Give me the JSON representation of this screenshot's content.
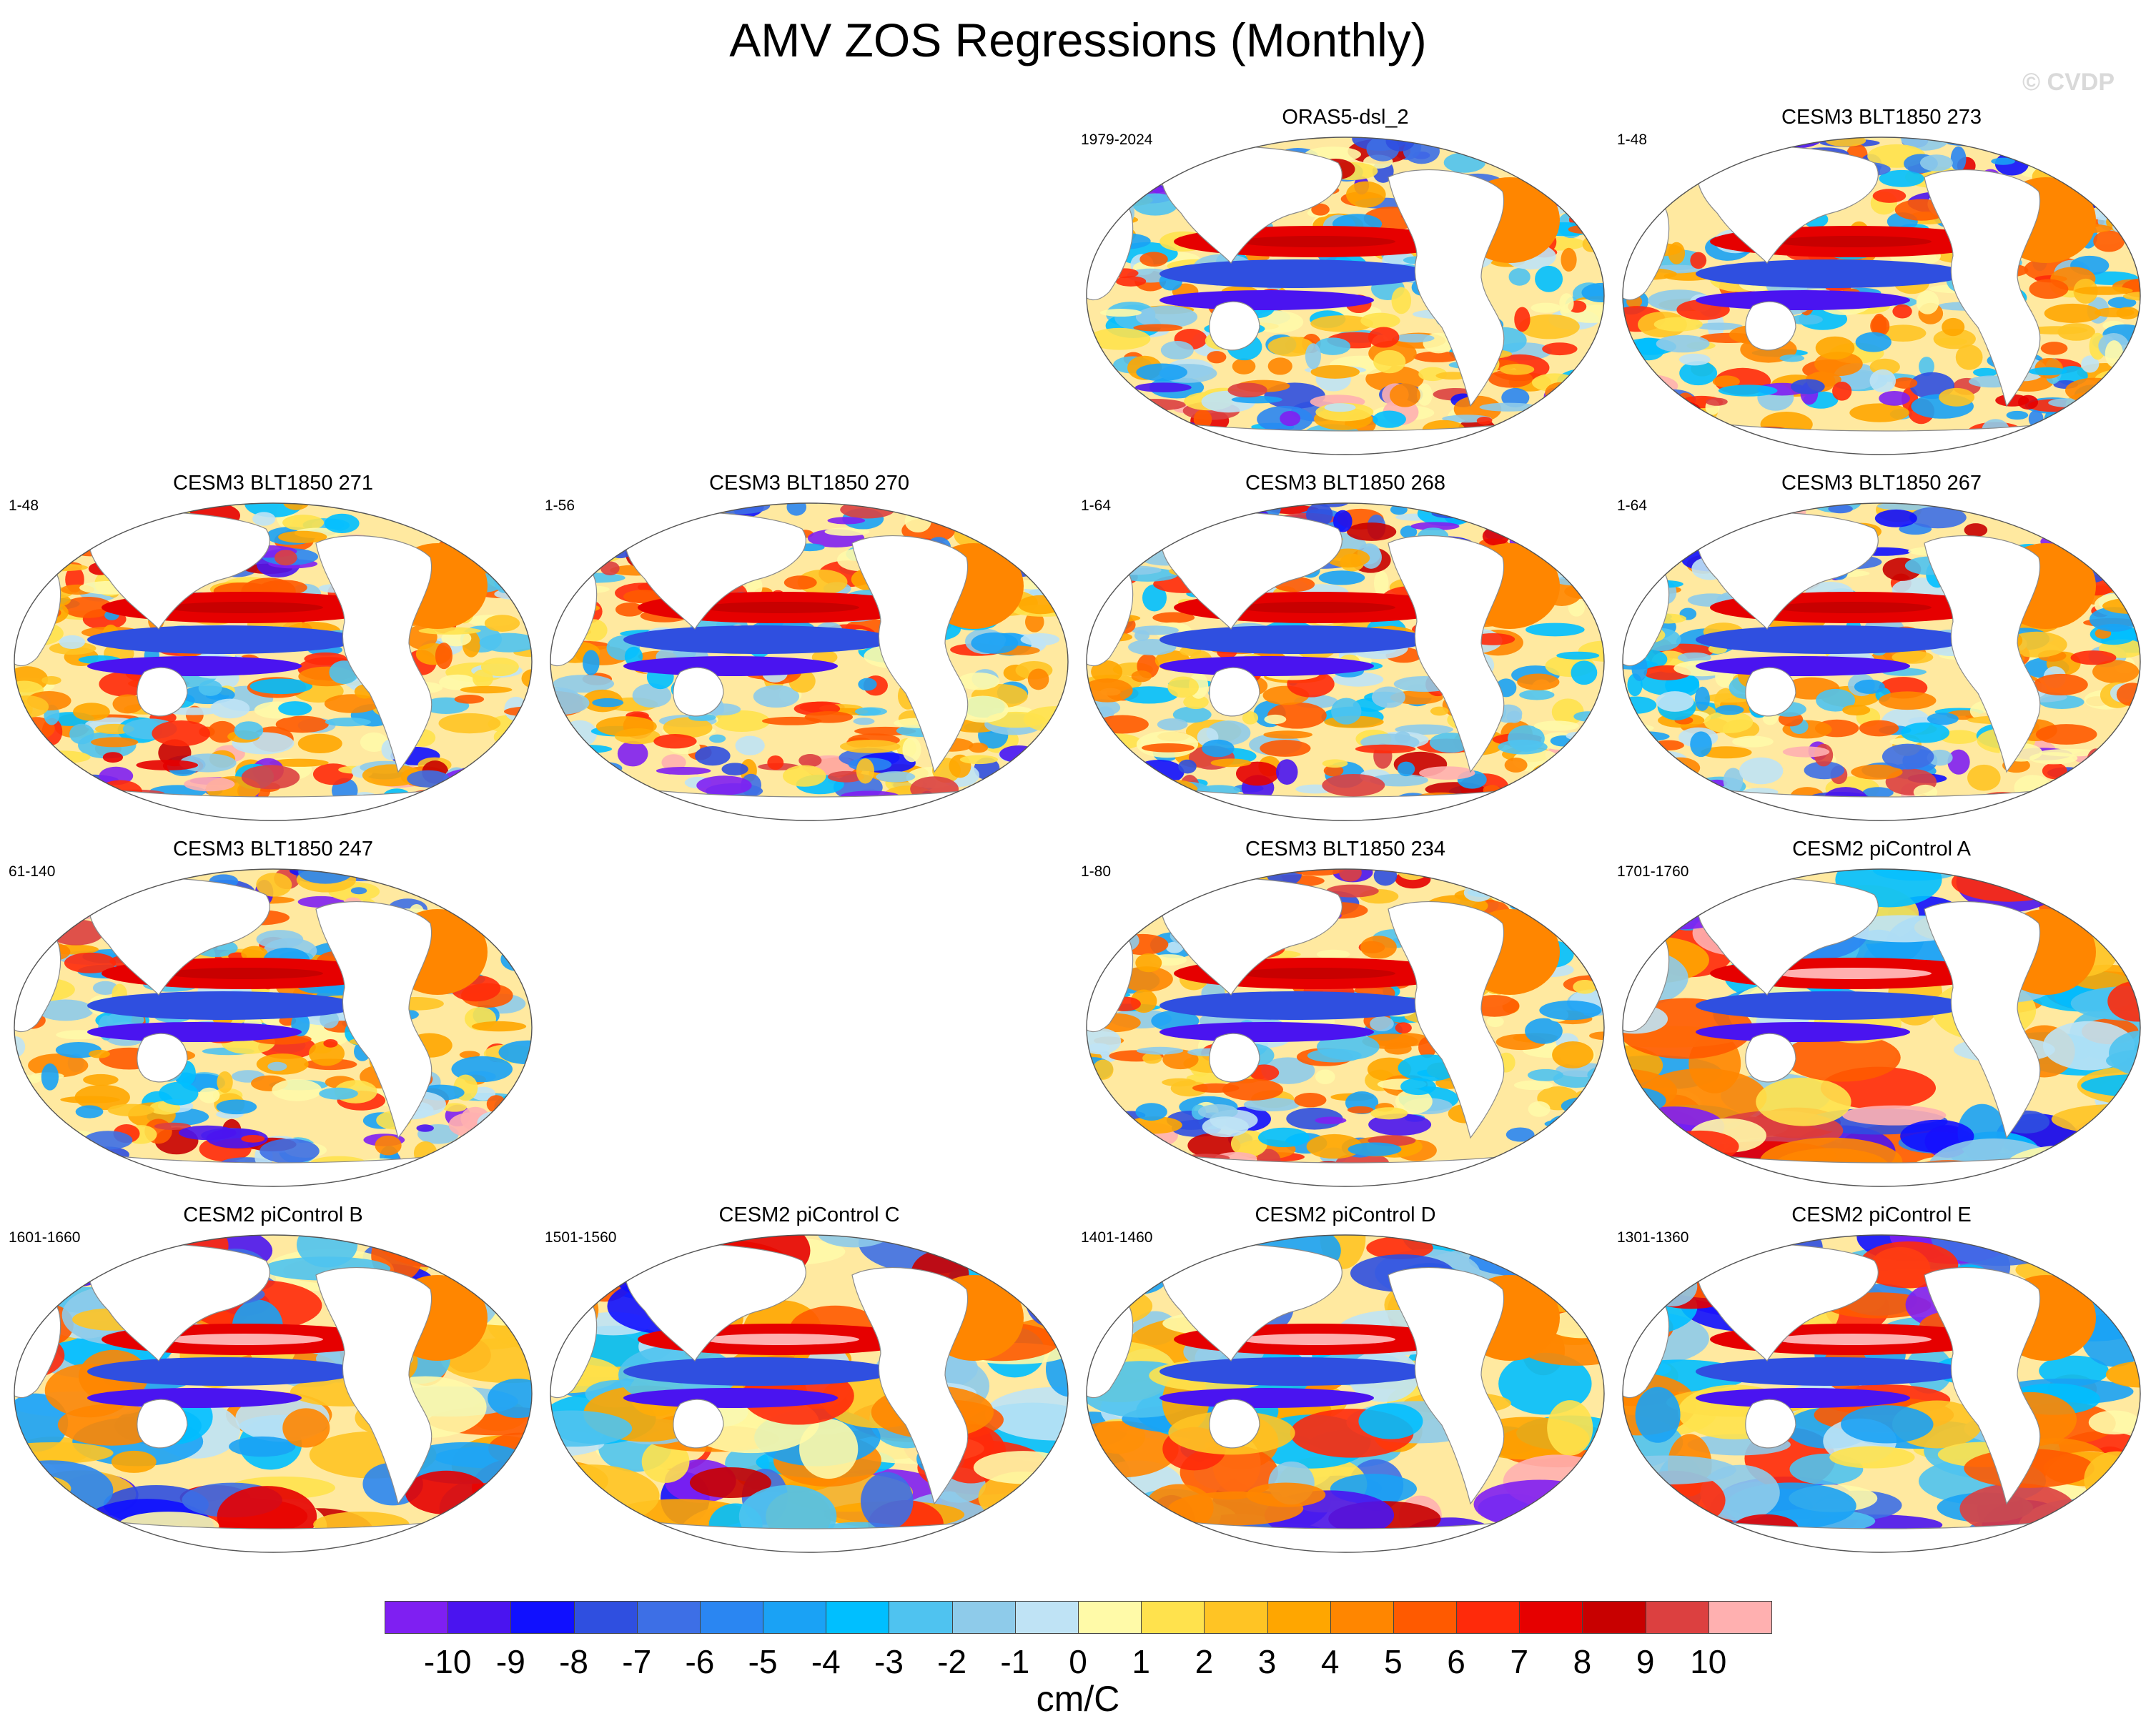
{
  "title": "AMV ZOS Regressions (Monthly)",
  "watermark": "© CVDP",
  "chart_data": {
    "type": "heatmap",
    "title": "AMV ZOS Regressions (Monthly)",
    "units": "cm/C",
    "projection": "Robinson (global ocean maps)",
    "panels": [
      {
        "name": "ORAS5-dsl_2",
        "period": "1979-2024",
        "row": 0,
        "col": 2,
        "style": "noisy"
      },
      {
        "name": "CESM3 BLT1850 273",
        "period": "1-48",
        "row": 0,
        "col": 3,
        "style": "noisy"
      },
      {
        "name": "CESM3 BLT1850 271",
        "period": "1-48",
        "row": 1,
        "col": 0,
        "style": "noisy"
      },
      {
        "name": "CESM3 BLT1850 270",
        "period": "1-56",
        "row": 1,
        "col": 1,
        "style": "noisy"
      },
      {
        "name": "CESM3 BLT1850 268",
        "period": "1-64",
        "row": 1,
        "col": 2,
        "style": "noisy"
      },
      {
        "name": "CESM3 BLT1850 267",
        "period": "1-64",
        "row": 1,
        "col": 3,
        "style": "noisy"
      },
      {
        "name": "CESM3 BLT1850 247",
        "period": "61-140",
        "row": 2,
        "col": 0,
        "style": "noisy"
      },
      {
        "name": "CESM3 BLT1850 234",
        "period": "1-80",
        "row": 2,
        "col": 2,
        "style": "noisy"
      },
      {
        "name": "CESM2 piControl A",
        "period": "1701-1760",
        "row": 2,
        "col": 3,
        "style": "smooth"
      },
      {
        "name": "CESM2 piControl B",
        "period": "1601-1660",
        "row": 3,
        "col": 0,
        "style": "smooth"
      },
      {
        "name": "CESM2 piControl C",
        "period": "1501-1560",
        "row": 3,
        "col": 1,
        "style": "smooth"
      },
      {
        "name": "CESM2 piControl D",
        "period": "1401-1460",
        "row": 3,
        "col": 2,
        "style": "smooth"
      },
      {
        "name": "CESM2 piControl E",
        "period": "1301-1360",
        "row": 3,
        "col": 3,
        "style": "smooth"
      }
    ],
    "colorbar": {
      "labels": [
        "-10",
        "-9",
        "-8",
        "-7",
        "-6",
        "-5",
        "-4",
        "-3",
        "-2",
        "-1",
        "0",
        "1",
        "2",
        "3",
        "4",
        "5",
        "6",
        "7",
        "8",
        "9",
        "10"
      ],
      "colors": [
        "#7f1ff2",
        "#4a14f0",
        "#1010ff",
        "#2f4fe0",
        "#3d6fe6",
        "#2a86f2",
        "#1aa2f5",
        "#00bfff",
        "#4fc3f0",
        "#8ecbea",
        "#bfe3f5",
        "#fffaa8",
        "#ffe24d",
        "#ffc424",
        "#ffa600",
        "#ff8600",
        "#ff5a00",
        "#ff2a0a",
        "#e60000",
        "#c80000",
        "#dc4040",
        "#ffb0b0"
      ]
    }
  }
}
